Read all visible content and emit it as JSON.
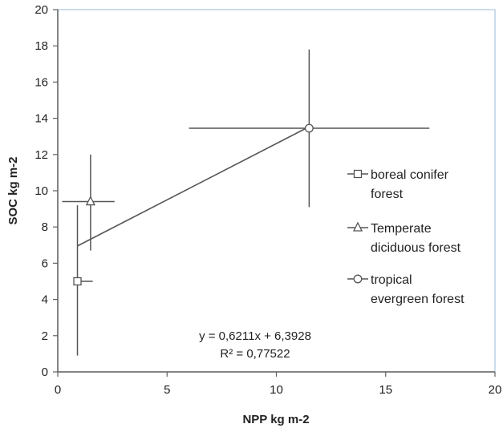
{
  "chart_data": {
    "type": "scatter",
    "xlabel": "NPP kg m-2",
    "ylabel": "SOC kg m-2",
    "xlim": [
      0,
      20
    ],
    "ylim": [
      0,
      20
    ],
    "x_ticks": [
      0,
      5,
      10,
      15,
      20
    ],
    "y_ticks": [
      0,
      2,
      4,
      6,
      8,
      10,
      12,
      14,
      16,
      18,
      20
    ],
    "grid": false,
    "legend_position": "right",
    "series": [
      {
        "name": "boreal conifer forest",
        "legend_lines": [
          "boreal conifer",
          "forest"
        ],
        "marker": "square",
        "x": 0.9,
        "y": 5.0,
        "x_err": [
          0.8,
          1.6
        ],
        "y_err": [
          0.9,
          9.2
        ]
      },
      {
        "name": "Temperate diciduous forest",
        "legend_lines": [
          "Temperate",
          "diciduous forest"
        ],
        "marker": "triangle",
        "x": 1.5,
        "y": 9.4,
        "x_err": [
          0.2,
          2.6
        ],
        "y_err": [
          6.7,
          12.0
        ]
      },
      {
        "name": "tropical evergreen forest",
        "legend_lines": [
          "tropical",
          "evergreen forest"
        ],
        "marker": "circle",
        "x": 11.5,
        "y": 13.45,
        "x_err": [
          6.0,
          17.0
        ],
        "y_err": [
          9.1,
          17.8
        ]
      }
    ],
    "trendline": {
      "slope": 0.6211,
      "intercept": 6.3928,
      "x_range": [
        0.9,
        11.5
      ]
    },
    "annotations": [
      "y = 0,6211x + 6,3928",
      "R² = 0,77522"
    ],
    "colors": {
      "marker": "#555555",
      "line": "#555555",
      "axis": "#5f5f5f",
      "frame": "#a9c5e0"
    }
  }
}
